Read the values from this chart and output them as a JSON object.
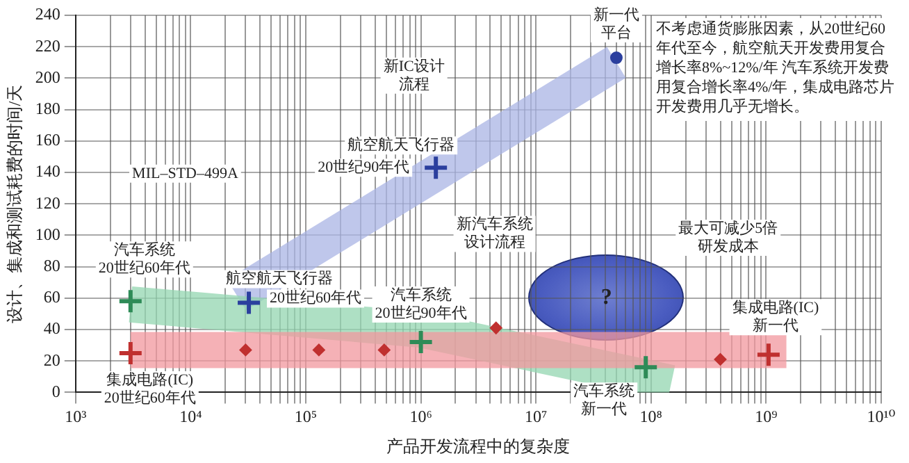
{
  "chart_data": {
    "type": "scatter",
    "xlabel": "产品开发流程中的复杂度",
    "ylabel": "设计、集成和测试耗费的时间/天",
    "log": "x",
    "grid": true,
    "legend": false,
    "marker": "cross",
    "xlim": [
      1000,
      10000000000
    ],
    "ylim": [
      0,
      240
    ],
    "xticks": [
      {
        "value": 1000,
        "label": "10³"
      },
      {
        "value": 2000,
        "label": null
      },
      {
        "value": 3000,
        "label": null
      },
      {
        "value": 4000,
        "label": null
      },
      {
        "value": 5000,
        "label": null
      },
      {
        "value": 6000,
        "label": null
      },
      {
        "value": 7000,
        "label": null
      },
      {
        "value": 8000,
        "label": null
      },
      {
        "value": 9000,
        "label": null
      },
      {
        "value": 10000,
        "label": "10⁴"
      },
      {
        "value": 20000,
        "label": null
      },
      {
        "value": 30000,
        "label": null
      },
      {
        "value": 40000,
        "label": null
      },
      {
        "value": 50000,
        "label": null
      },
      {
        "value": 60000,
        "label": null
      },
      {
        "value": 70000,
        "label": null
      },
      {
        "value": 80000,
        "label": null
      },
      {
        "value": 90000,
        "label": null
      },
      {
        "value": 100000,
        "label": "10⁵"
      },
      {
        "value": 200000,
        "label": null
      },
      {
        "value": 300000,
        "label": null
      },
      {
        "value": 400000,
        "label": null
      },
      {
        "value": 500000,
        "label": null
      },
      {
        "value": 600000,
        "label": null
      },
      {
        "value": 700000,
        "label": null
      },
      {
        "value": 800000,
        "label": null
      },
      {
        "value": 900000,
        "label": null
      },
      {
        "value": 1000000,
        "label": "10⁶"
      },
      {
        "value": 2000000,
        "label": null
      },
      {
        "value": 3000000,
        "label": null
      },
      {
        "value": 4000000,
        "label": null
      },
      {
        "value": 5000000,
        "label": null
      },
      {
        "value": 6000000,
        "label": null
      },
      {
        "value": 7000000,
        "label": null
      },
      {
        "value": 8000000,
        "label": null
      },
      {
        "value": 9000000,
        "label": null
      },
      {
        "value": 10000000,
        "label": "10⁷"
      },
      {
        "value": 20000000,
        "label": null
      },
      {
        "value": 30000000,
        "label": null
      },
      {
        "value": 40000000,
        "label": null
      },
      {
        "value": 50000000,
        "label": null
      },
      {
        "value": 60000000,
        "label": null
      },
      {
        "value": 70000000,
        "label": null
      },
      {
        "value": 80000000,
        "label": null
      },
      {
        "value": 90000000,
        "label": null
      },
      {
        "value": 100000000,
        "label": "10⁸"
      },
      {
        "value": 200000000,
        "label": null
      },
      {
        "value": 300000000,
        "label": null
      },
      {
        "value": 400000000,
        "label": null
      },
      {
        "value": 500000000,
        "label": null
      },
      {
        "value": 600000000,
        "label": null
      },
      {
        "value": 700000000,
        "label": null
      },
      {
        "value": 800000000,
        "label": null
      },
      {
        "value": 900000000,
        "label": null
      },
      {
        "value": 1000000000,
        "label": "10⁹"
      },
      {
        "value": 2000000000,
        "label": null
      },
      {
        "value": 3000000000,
        "label": null
      },
      {
        "value": 4000000000,
        "label": null
      },
      {
        "value": 5000000000,
        "label": null
      },
      {
        "value": 6000000000,
        "label": null
      },
      {
        "value": 7000000000,
        "label": null
      },
      {
        "value": 8000000000,
        "label": null
      },
      {
        "value": 9000000000,
        "label": null
      },
      {
        "value": 10000000000,
        "label": "10¹⁰"
      }
    ],
    "yticks": [
      0,
      20,
      40,
      60,
      80,
      100,
      120,
      140,
      160,
      180,
      200,
      220,
      240
    ],
    "series": [
      {
        "type": "line",
        "marker": "none",
        "color": "#aab4e4",
        "x": [
          25000,
          50000000
        ],
        "values": [
          62,
          210
        ]
      },
      {
        "type": "line",
        "marker": "none",
        "color": "#93d6b0",
        "x": [
          3000,
          1000000,
          150000000
        ],
        "values": [
          56,
          40,
          6
        ]
      },
      {
        "type": "line",
        "marker": "none",
        "color": "#f2989e",
        "x": [
          3000,
          1500000000
        ],
        "values": [
          27,
          27
        ]
      },
      {
        "color": "#2e8b57",
        "x": [
          3000,
          1000000,
          90000000
        ],
        "values": [
          58,
          32,
          16
        ]
      },
      {
        "color": "#2b3f9e",
        "x": [
          32000,
          1350000
        ],
        "values": [
          57,
          143
        ]
      },
      {
        "color": "#c0302f",
        "x": [
          3000,
          1050000000
        ],
        "values": [
          25,
          24
        ]
      },
      {
        "color": "#c0302f",
        "marker": "diamond",
        "x": [
          30000,
          130000,
          480000,
          4500000,
          400000000
        ],
        "values": [
          27,
          27,
          27,
          41,
          21
        ]
      },
      {
        "color": "#2b3f9e",
        "marker": "circle",
        "x": [
          50000000
        ],
        "values": [
          213
        ]
      }
    ],
    "annotations": [
      "?",
      "不考虑通货膨胀因素，从20世纪60年代至今，航空航天开发费用复合增长率8%~12%/年 汽车系统开发费用复合增长率4%/年，集成电路芯片开发费用几乎无增长。",
      {
        "text": "汽车系统20世纪60年代",
        "x": 3000,
        "y": 58
      },
      {
        "text": "航空航天飞行器",
        "x": 32000,
        "y": 57
      },
      {
        "text": "20世纪60年代",
        "x": 32000,
        "y": 57
      },
      {
        "text": "汽车系统20世纪90年代",
        "x": 1000000,
        "y": 32
      },
      {
        "text": "集成电路(IC)20世纪60年代",
        "x": 3000,
        "y": 25
      },
      {
        "text": "航空航天飞行器",
        "x": 1350000,
        "y": 143
      },
      {
        "text": "20世纪90年代",
        "x": 1350000,
        "y": 143
      },
      {
        "text": "新一代平台",
        "x": 50000000,
        "y": 213
      },
      "新IC设计流程",
      "MIL–STD–499A",
      "新汽车系统设计流程",
      "最大可减少5倍研发成本",
      {
        "text": "汽车系统新一代",
        "x": 90000000,
        "y": 16
      },
      {
        "text": "集成电路(IC)新一代",
        "x": 1050000000,
        "y": 24
      }
    ]
  }
}
